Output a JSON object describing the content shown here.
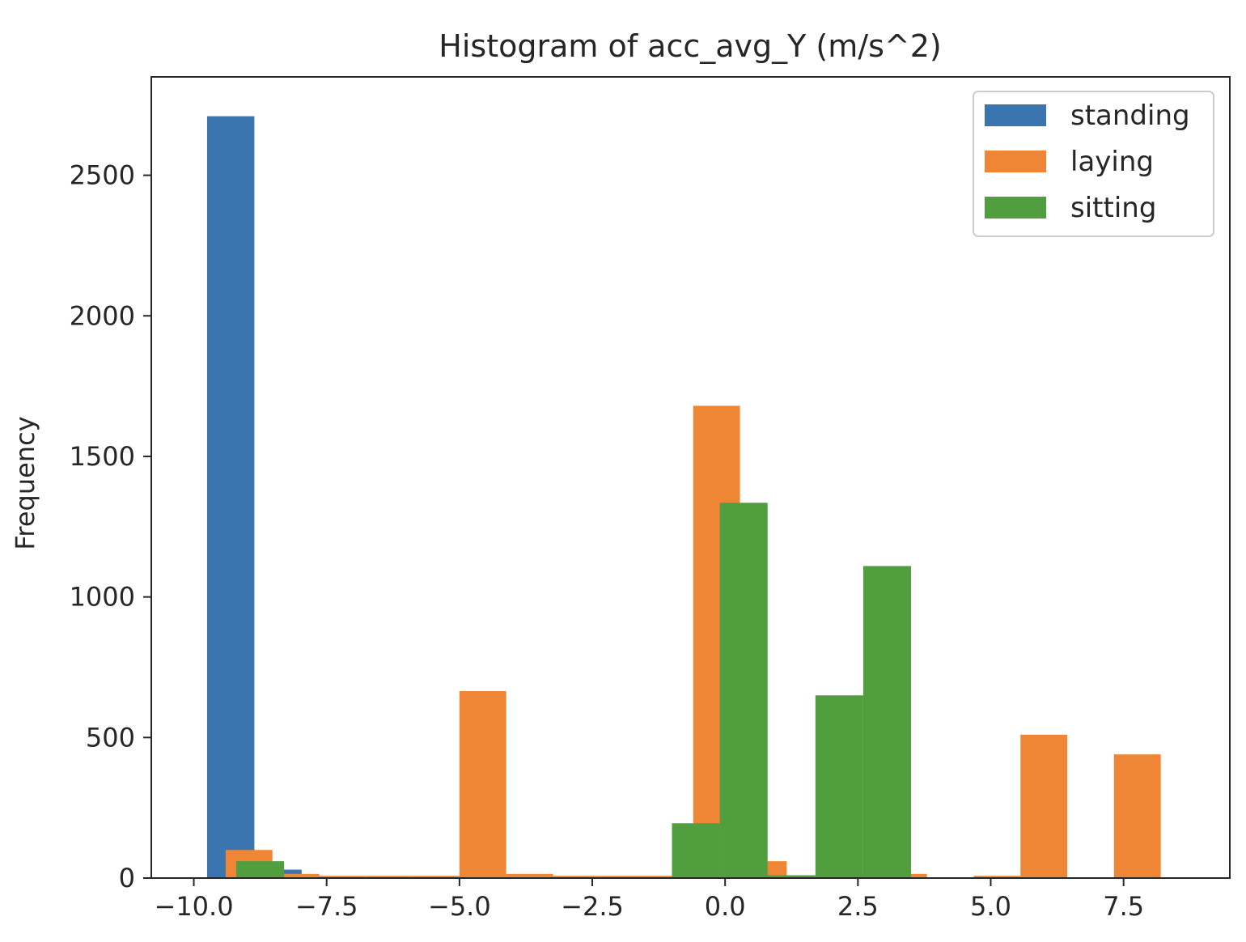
{
  "chart_data": {
    "type": "bar",
    "title": "Histogram of acc_avg_Y (m/s^2)",
    "xlabel": "",
    "ylabel": "Frequency",
    "xlim": [
      -10.8,
      9.5
    ],
    "ylim": [
      0,
      2850
    ],
    "xticks": [
      -10.0,
      -7.5,
      -5.0,
      -2.5,
      0.0,
      2.5,
      5.0,
      7.5
    ],
    "xtick_labels": [
      "−10.0",
      "−7.5",
      "−5.0",
      "−2.5",
      "0.0",
      "2.5",
      "5.0",
      "7.5"
    ],
    "yticks": [
      0,
      500,
      1000,
      1500,
      2000,
      2500
    ],
    "ytick_labels": [
      "0",
      "500",
      "1000",
      "1500",
      "2000",
      "2500"
    ],
    "grid": false,
    "legend_position": "top-right",
    "series": [
      {
        "name": "standing",
        "color": "#3a75af",
        "bins": [
          {
            "x0": -9.75,
            "x1": -8.86,
            "count": 2710
          },
          {
            "x0": -8.86,
            "x1": -7.97,
            "count": 30
          },
          {
            "x0": -7.97,
            "x1": -7.08,
            "count": 5
          }
        ]
      },
      {
        "name": "laying",
        "color": "#ef8636",
        "bins": [
          {
            "x0": -9.4,
            "x1": -8.52,
            "count": 100
          },
          {
            "x0": -8.52,
            "x1": -7.64,
            "count": 15
          },
          {
            "x0": -7.64,
            "x1": -6.76,
            "count": 8
          },
          {
            "x0": -6.76,
            "x1": -5.88,
            "count": 8
          },
          {
            "x0": -5.88,
            "x1": -5.0,
            "count": 8
          },
          {
            "x0": -5.0,
            "x1": -4.12,
            "count": 665
          },
          {
            "x0": -4.12,
            "x1": -3.24,
            "count": 15
          },
          {
            "x0": -3.24,
            "x1": -2.36,
            "count": 8
          },
          {
            "x0": -2.36,
            "x1": -1.48,
            "count": 8
          },
          {
            "x0": -1.48,
            "x1": -0.6,
            "count": 8
          },
          {
            "x0": -0.6,
            "x1": 0.28,
            "count": 1680
          },
          {
            "x0": 0.28,
            "x1": 1.16,
            "count": 60
          },
          {
            "x0": 1.16,
            "x1": 2.04,
            "count": 5
          },
          {
            "x0": 2.04,
            "x1": 2.92,
            "count": 5
          },
          {
            "x0": 2.92,
            "x1": 3.8,
            "count": 15
          },
          {
            "x0": 3.8,
            "x1": 4.68,
            "count": 0
          },
          {
            "x0": 4.68,
            "x1": 5.56,
            "count": 8
          },
          {
            "x0": 5.56,
            "x1": 6.44,
            "count": 510
          },
          {
            "x0": 6.44,
            "x1": 7.32,
            "count": 0
          },
          {
            "x0": 7.32,
            "x1": 8.2,
            "count": 440
          }
        ]
      },
      {
        "name": "sitting",
        "color": "#519e3e",
        "bins": [
          {
            "x0": -9.2,
            "x1": -8.3,
            "count": 60
          },
          {
            "x0": -1.0,
            "x1": -0.1,
            "count": 195
          },
          {
            "x0": -0.1,
            "x1": 0.8,
            "count": 1335
          },
          {
            "x0": 0.8,
            "x1": 1.7,
            "count": 10
          },
          {
            "x0": 1.7,
            "x1": 2.6,
            "count": 650
          },
          {
            "x0": 2.6,
            "x1": 3.5,
            "count": 1110
          }
        ]
      }
    ]
  }
}
